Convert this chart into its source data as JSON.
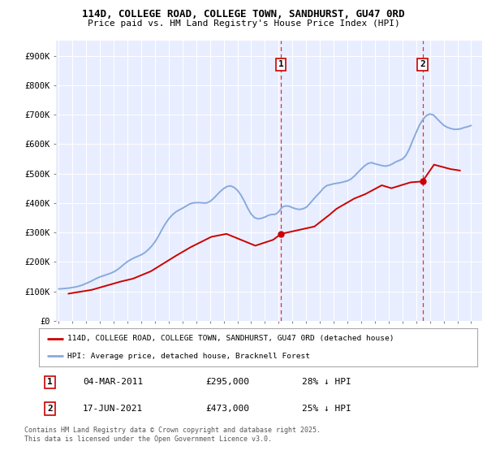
{
  "title": "114D, COLLEGE ROAD, COLLEGE TOWN, SANDHURST, GU47 0RD",
  "subtitle": "Price paid vs. HM Land Registry's House Price Index (HPI)",
  "ylabel_ticks": [
    "£0",
    "£100K",
    "£200K",
    "£300K",
    "£400K",
    "£500K",
    "£600K",
    "£700K",
    "£800K",
    "£900K"
  ],
  "ytick_values": [
    0,
    100000,
    200000,
    300000,
    400000,
    500000,
    600000,
    700000,
    800000,
    900000
  ],
  "ylim": [
    0,
    950000
  ],
  "xlim_start": 1994.8,
  "xlim_end": 2025.8,
  "background_color": "#ffffff",
  "plot_bg_color": "#e8eeff",
  "grid_color": "#ffffff",
  "line1_color": "#cc0000",
  "line2_color": "#88aadd",
  "marker1_x": 2011.17,
  "marker1_y": 295000,
  "marker2_x": 2021.46,
  "marker2_y": 473000,
  "vline_color": "#dd3333",
  "legend_label1": "114D, COLLEGE ROAD, COLLEGE TOWN, SANDHURST, GU47 0RD (detached house)",
  "legend_label2": "HPI: Average price, detached house, Bracknell Forest",
  "table_row1": [
    "1",
    "04-MAR-2011",
    "£295,000",
    "28% ↓ HPI"
  ],
  "table_row2": [
    "2",
    "17-JUN-2021",
    "£473,000",
    "25% ↓ HPI"
  ],
  "footer": "Contains HM Land Registry data © Crown copyright and database right 2025.\nThis data is licensed under the Open Government Licence v3.0.",
  "hpi_years": [
    1995.0,
    1995.25,
    1995.5,
    1995.75,
    1996.0,
    1996.25,
    1996.5,
    1996.75,
    1997.0,
    1997.25,
    1997.5,
    1997.75,
    1998.0,
    1998.25,
    1998.5,
    1998.75,
    1999.0,
    1999.25,
    1999.5,
    1999.75,
    2000.0,
    2000.25,
    2000.5,
    2000.75,
    2001.0,
    2001.25,
    2001.5,
    2001.75,
    2002.0,
    2002.25,
    2002.5,
    2002.75,
    2003.0,
    2003.25,
    2003.5,
    2003.75,
    2004.0,
    2004.25,
    2004.5,
    2004.75,
    2005.0,
    2005.25,
    2005.5,
    2005.75,
    2006.0,
    2006.25,
    2006.5,
    2006.75,
    2007.0,
    2007.25,
    2007.5,
    2007.75,
    2008.0,
    2008.25,
    2008.5,
    2008.75,
    2009.0,
    2009.25,
    2009.5,
    2009.75,
    2010.0,
    2010.25,
    2010.5,
    2010.75,
    2011.0,
    2011.25,
    2011.5,
    2011.75,
    2012.0,
    2012.25,
    2012.5,
    2012.75,
    2013.0,
    2013.25,
    2013.5,
    2013.75,
    2014.0,
    2014.25,
    2014.5,
    2014.75,
    2015.0,
    2015.25,
    2015.5,
    2015.75,
    2016.0,
    2016.25,
    2016.5,
    2016.75,
    2017.0,
    2017.25,
    2017.5,
    2017.75,
    2018.0,
    2018.25,
    2018.5,
    2018.75,
    2019.0,
    2019.25,
    2019.5,
    2019.75,
    2020.0,
    2020.25,
    2020.5,
    2020.75,
    2021.0,
    2021.25,
    2021.5,
    2021.75,
    2022.0,
    2022.25,
    2022.5,
    2022.75,
    2023.0,
    2023.25,
    2023.5,
    2023.75,
    2024.0,
    2024.25,
    2024.5,
    2024.75,
    2025.0
  ],
  "hpi_values": [
    108000,
    109000,
    110000,
    111000,
    113000,
    115000,
    118000,
    122000,
    127000,
    132000,
    138000,
    144000,
    149000,
    153000,
    157000,
    161000,
    166000,
    173000,
    182000,
    192000,
    201000,
    208000,
    214000,
    219000,
    224000,
    231000,
    241000,
    253000,
    268000,
    287000,
    309000,
    329000,
    346000,
    359000,
    369000,
    376000,
    382000,
    389000,
    396000,
    400000,
    401000,
    401000,
    400000,
    400000,
    405000,
    415000,
    427000,
    439000,
    449000,
    456000,
    458000,
    453000,
    443000,
    427000,
    406000,
    382000,
    362000,
    350000,
    346000,
    348000,
    352000,
    358000,
    361000,
    361000,
    370000,
    386000,
    390000,
    389000,
    384000,
    380000,
    378000,
    380000,
    385000,
    397000,
    411000,
    424000,
    436000,
    450000,
    459000,
    462000,
    465000,
    467000,
    469000,
    472000,
    475000,
    481000,
    491000,
    503000,
    515000,
    526000,
    534000,
    537000,
    533000,
    530000,
    527000,
    525000,
    527000,
    532000,
    539000,
    544000,
    549000,
    561000,
    583000,
    612000,
    639000,
    665000,
    684000,
    697000,
    702000,
    699000,
    687000,
    675000,
    664000,
    657000,
    653000,
    650000,
    650000,
    652000,
    656000,
    659000,
    663000
  ],
  "price_years": [
    1995.7,
    1997.4,
    1999.5,
    2000.4,
    2001.7,
    2003.5,
    2004.6,
    2006.1,
    2007.2,
    2009.3,
    2010.6,
    2011.17,
    2013.6,
    2014.7,
    2015.2,
    2016.5,
    2017.3,
    2018.5,
    2019.2,
    2020.6,
    2021.46,
    2022.3,
    2023.5,
    2024.2
  ],
  "price_values": [
    92000,
    105000,
    133000,
    143000,
    168000,
    220000,
    250000,
    285000,
    295000,
    255000,
    275000,
    295000,
    320000,
    360000,
    380000,
    415000,
    430000,
    460000,
    450000,
    470000,
    473000,
    530000,
    515000,
    510000
  ]
}
